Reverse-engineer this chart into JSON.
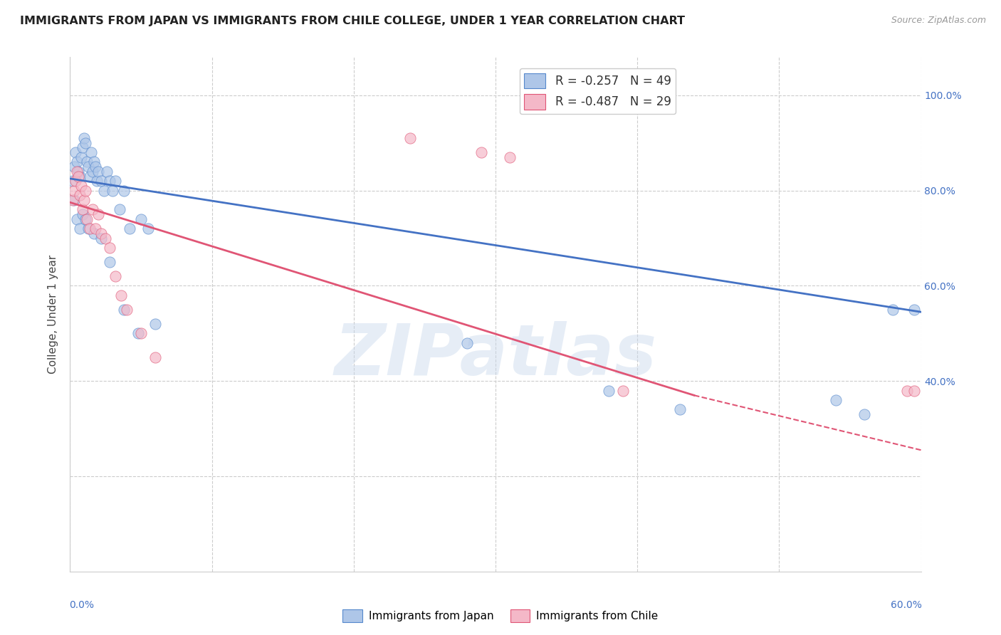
{
  "title": "IMMIGRANTS FROM JAPAN VS IMMIGRANTS FROM CHILE COLLEGE, UNDER 1 YEAR CORRELATION CHART",
  "source": "Source: ZipAtlas.com",
  "ylabel": "College, Under 1 year",
  "xmin": 0.0,
  "xmax": 0.6,
  "ymin": 0.0,
  "ymax": 1.08,
  "legend_japan": "R = -0.257   N = 49",
  "legend_chile": "R = -0.487   N = 29",
  "japan_color": "#aec6e8",
  "chile_color": "#f4b8c8",
  "japan_edge_color": "#5588cc",
  "chile_edge_color": "#e05575",
  "japan_line_color": "#4472c4",
  "chile_line_color": "#e05575",
  "japan_scatter_x": [
    0.002,
    0.003,
    0.004,
    0.005,
    0.006,
    0.007,
    0.008,
    0.009,
    0.01,
    0.011,
    0.012,
    0.013,
    0.014,
    0.015,
    0.016,
    0.017,
    0.018,
    0.019,
    0.02,
    0.022,
    0.024,
    0.026,
    0.028,
    0.03,
    0.032,
    0.035,
    0.038,
    0.042,
    0.05,
    0.055,
    0.003,
    0.005,
    0.007,
    0.009,
    0.011,
    0.013,
    0.017,
    0.022,
    0.028,
    0.038,
    0.048,
    0.06,
    0.28,
    0.38,
    0.43,
    0.54,
    0.56,
    0.58,
    0.595
  ],
  "japan_scatter_y": [
    0.82,
    0.85,
    0.88,
    0.86,
    0.84,
    0.83,
    0.87,
    0.89,
    0.91,
    0.9,
    0.86,
    0.85,
    0.83,
    0.88,
    0.84,
    0.86,
    0.85,
    0.82,
    0.84,
    0.82,
    0.8,
    0.84,
    0.82,
    0.8,
    0.82,
    0.76,
    0.8,
    0.72,
    0.74,
    0.72,
    0.78,
    0.74,
    0.72,
    0.75,
    0.74,
    0.72,
    0.71,
    0.7,
    0.65,
    0.55,
    0.5,
    0.52,
    0.48,
    0.38,
    0.34,
    0.36,
    0.33,
    0.55,
    0.55
  ],
  "chile_scatter_x": [
    0.002,
    0.003,
    0.004,
    0.005,
    0.006,
    0.007,
    0.008,
    0.009,
    0.01,
    0.011,
    0.012,
    0.014,
    0.016,
    0.018,
    0.02,
    0.022,
    0.025,
    0.028,
    0.032,
    0.036,
    0.04,
    0.05,
    0.06,
    0.24,
    0.29,
    0.31,
    0.39,
    0.59,
    0.595
  ],
  "chile_scatter_y": [
    0.78,
    0.8,
    0.82,
    0.84,
    0.83,
    0.79,
    0.81,
    0.76,
    0.78,
    0.8,
    0.74,
    0.72,
    0.76,
    0.72,
    0.75,
    0.71,
    0.7,
    0.68,
    0.62,
    0.58,
    0.55,
    0.5,
    0.45,
    0.91,
    0.88,
    0.87,
    0.38,
    0.38,
    0.38
  ],
  "japan_trend_x0": 0.0,
  "japan_trend_y0": 0.825,
  "japan_trend_x1": 0.6,
  "japan_trend_y1": 0.545,
  "chile_trend_x0": 0.0,
  "chile_trend_y0": 0.775,
  "chile_trend_solid_x1": 0.44,
  "chile_trend_solid_y1": 0.37,
  "chile_trend_dashed_x1": 0.6,
  "chile_trend_dashed_y1": 0.255,
  "watermark": "ZIPatlas",
  "background_color": "#ffffff",
  "grid_color": "#cccccc"
}
